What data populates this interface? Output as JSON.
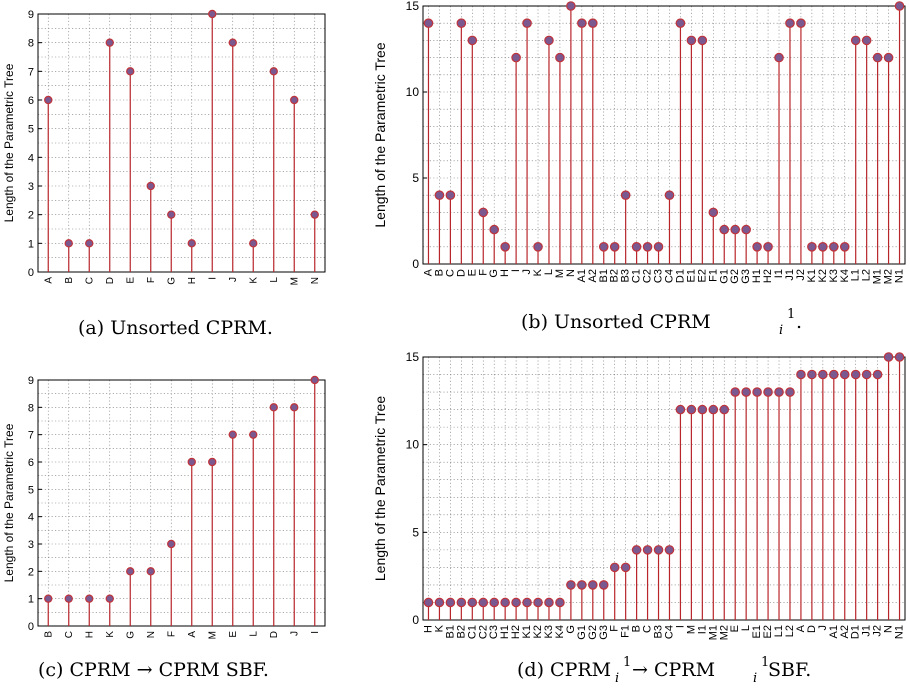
{
  "chart_data": [
    {
      "type": "stem",
      "panel": "a",
      "caption": "(a) Unsorted CPRM.",
      "ylabel": "Length of the Parametric Tree",
      "ylim": [
        0,
        9
      ],
      "yticks": [
        0,
        1,
        2,
        3,
        4,
        5,
        6,
        7,
        8,
        9
      ],
      "grid": true,
      "categories": [
        "A",
        "B",
        "C",
        "D",
        "E",
        "F",
        "G",
        "H",
        "I",
        "J",
        "K",
        "L",
        "M",
        "N"
      ],
      "values": [
        6,
        1,
        1,
        8,
        7,
        3,
        2,
        1,
        9,
        8,
        1,
        7,
        6,
        2
      ]
    },
    {
      "type": "stem",
      "panel": "b",
      "caption": "(b) Unsorted CPRM",
      "caption_sub": "i",
      "caption_sup": "1",
      "caption_tail": ".",
      "ylabel": "Length of the Parametric Tree",
      "ylim": [
        0,
        15
      ],
      "yticks": [
        0,
        5,
        10,
        15
      ],
      "grid": true,
      "categories": [
        "A",
        "B",
        "C",
        "D",
        "E",
        "F",
        "G",
        "H",
        "I",
        "J",
        "K",
        "L",
        "M",
        "N",
        "A1",
        "A2",
        "B1",
        "B2",
        "B3",
        "C1",
        "C2",
        "C3",
        "C4",
        "D1",
        "E1",
        "E2",
        "F1",
        "G1",
        "G2",
        "G3",
        "H1",
        "H2",
        "I1",
        "J1",
        "J2",
        "K1",
        "K2",
        "K3",
        "K4",
        "L1",
        "L2",
        "M1",
        "M2",
        "N1"
      ],
      "values": [
        14,
        4,
        4,
        14,
        13,
        3,
        2,
        1,
        12,
        14,
        1,
        13,
        12,
        15,
        14,
        14,
        1,
        1,
        4,
        1,
        1,
        1,
        4,
        14,
        13,
        13,
        3,
        2,
        2,
        2,
        1,
        1,
        12,
        14,
        14,
        1,
        1,
        1,
        1,
        13,
        13,
        12,
        12,
        15
      ]
    },
    {
      "type": "stem",
      "panel": "c",
      "caption": "(c) CPRM → CPRM SBF.",
      "ylabel": "Length of the Parametric Tree",
      "ylim": [
        0,
        9
      ],
      "yticks": [
        0,
        1,
        2,
        3,
        4,
        5,
        6,
        7,
        8,
        9
      ],
      "grid": true,
      "categories": [
        "B",
        "C",
        "H",
        "K",
        "G",
        "N",
        "F",
        "A",
        "M",
        "E",
        "L",
        "D",
        "J",
        "I"
      ],
      "values": [
        1,
        1,
        1,
        1,
        2,
        2,
        3,
        6,
        6,
        7,
        7,
        8,
        8,
        9
      ]
    },
    {
      "type": "stem",
      "panel": "d",
      "caption": "(d) CPRM",
      "caption_sub": "i",
      "caption_sup": "1",
      "caption_mid": " → CPRM",
      "caption_tail": " SBF.",
      "ylabel": "Length of the Parametric Tree",
      "ylim": [
        0,
        15
      ],
      "yticks": [
        0,
        5,
        10,
        15
      ],
      "grid": true,
      "categories": [
        "H",
        "K",
        "B1",
        "B2",
        "C1",
        "C2",
        "C3",
        "H1",
        "H2",
        "K1",
        "K2",
        "K3",
        "K4",
        "G",
        "G1",
        "G2",
        "G3",
        "F",
        "F1",
        "B",
        "C",
        "B3",
        "C4",
        "I",
        "M",
        "I1",
        "M1",
        "M2",
        "E",
        "L",
        "E1",
        "E2",
        "L1",
        "L2",
        "A",
        "D",
        "J",
        "A1",
        "A2",
        "D1",
        "J1",
        "J2",
        "N",
        "N1"
      ],
      "values": [
        1,
        1,
        1,
        1,
        1,
        1,
        1,
        1,
        1,
        1,
        1,
        1,
        1,
        2,
        2,
        2,
        2,
        3,
        3,
        4,
        4,
        4,
        4,
        12,
        12,
        12,
        12,
        12,
        13,
        13,
        13,
        13,
        13,
        13,
        14,
        14,
        14,
        14,
        14,
        14,
        14,
        14,
        15,
        15
      ]
    }
  ],
  "colors": {
    "stem": "#b8262b",
    "marker_fill": "#7a5890",
    "marker_edge": "#c0333a",
    "grid": "#7a7a7a"
  }
}
